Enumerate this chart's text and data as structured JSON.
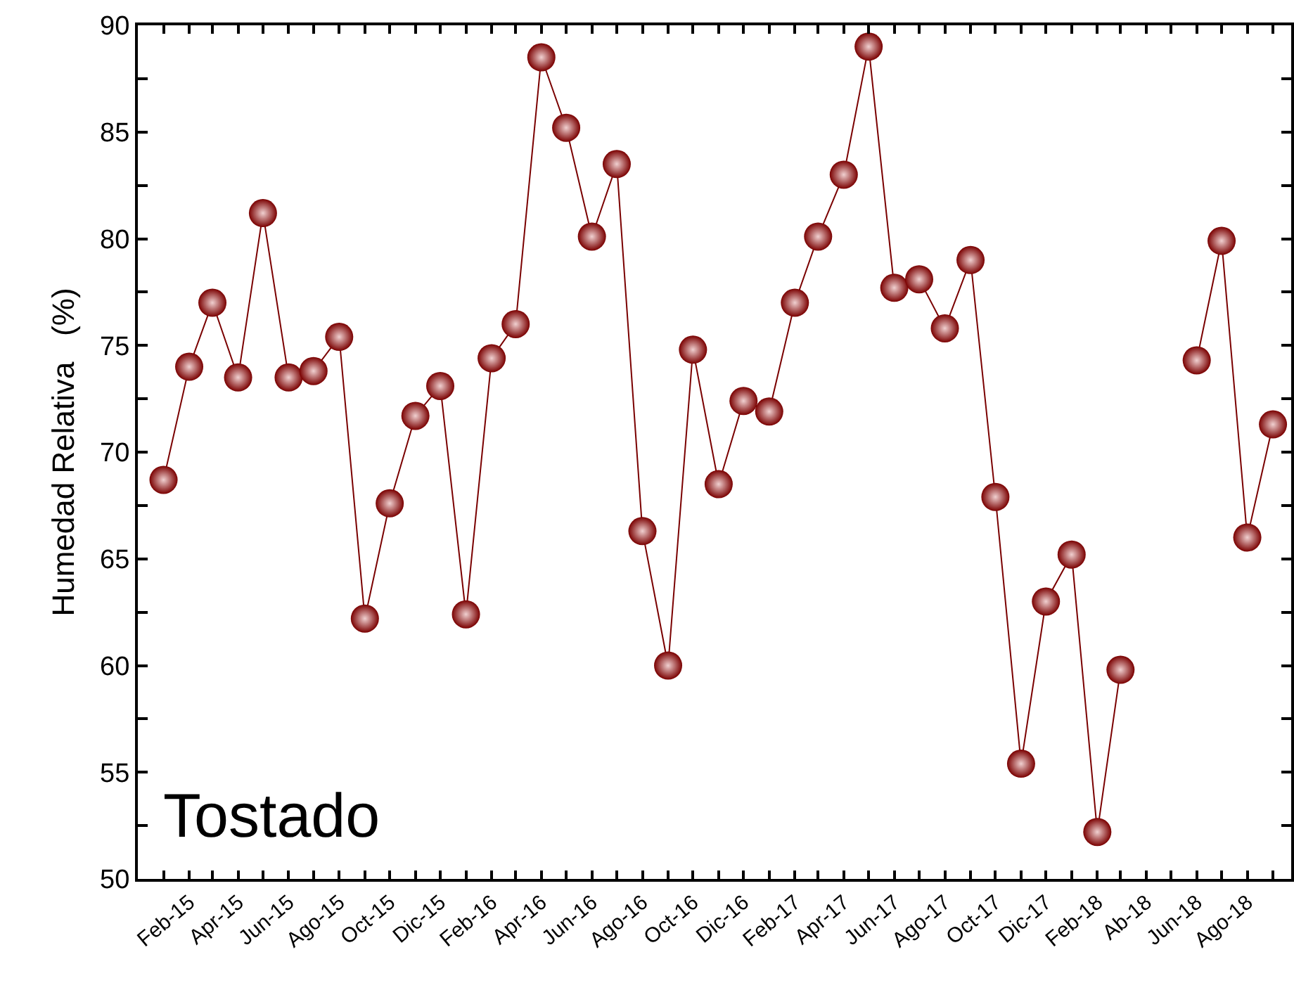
{
  "chart_data": {
    "type": "line",
    "ylabel": "Humedad Relativa   (%)",
    "annotations": [
      "Tostado"
    ],
    "x": [
      "2015-01",
      "2015-02",
      "2015-03",
      "2015-04",
      "2015-05",
      "2015-06",
      "2015-07",
      "2015-08",
      "2015-09",
      "2015-10",
      "2015-11",
      "2015-12",
      "2016-01",
      "2016-02",
      "2016-03",
      "2016-04",
      "2016-05",
      "2016-06",
      "2016-07",
      "2016-08",
      "2016-09",
      "2016-10",
      "2016-11",
      "2016-12",
      "2017-01",
      "2017-02",
      "2017-03",
      "2017-04",
      "2017-05",
      "2017-06",
      "2017-07",
      "2017-08",
      "2017-09",
      "2017-10",
      "2017-11",
      "2017-12",
      "2018-01",
      "2018-02",
      "2018-03",
      "2018-04",
      "2018-05",
      "2018-06",
      "2018-07",
      "2018-08",
      "2018-09"
    ],
    "series": [
      {
        "color": "#7a0000",
        "values": [
          68.7,
          74,
          77,
          73.5,
          81.2,
          73.5,
          73.8,
          75.4,
          62.2,
          67.6,
          71.7,
          73.1,
          62.4,
          74.4,
          76,
          88.5,
          85.2,
          80.1,
          83.5,
          66.3,
          60,
          74.8,
          68.5,
          72.4,
          71.9,
          77,
          80.1,
          83,
          89,
          77.7,
          78.1,
          75.8,
          79,
          67.9,
          55.4,
          63,
          65.2,
          52.2,
          59.8,
          null,
          null,
          74.3,
          79.9,
          66,
          71.3
        ]
      }
    ],
    "xlim": [
      "2014-12",
      "2018-09-23"
    ],
    "xticks": [
      {
        "value": "2015-01",
        "label": null
      },
      {
        "value": "2015-02",
        "label": "Feb-15"
      },
      {
        "value": "2015-03",
        "label": null
      },
      {
        "value": "2015-04",
        "label": "Apr-15"
      },
      {
        "value": "2015-05",
        "label": null
      },
      {
        "value": "2015-06",
        "label": "Jun-15"
      },
      {
        "value": "2015-07",
        "label": null
      },
      {
        "value": "2015-08",
        "label": "Ago-15"
      },
      {
        "value": "2015-09",
        "label": null
      },
      {
        "value": "2015-10",
        "label": "Oct-15"
      },
      {
        "value": "2015-11",
        "label": null
      },
      {
        "value": "2015-12",
        "label": "Dic-15"
      },
      {
        "value": "2016-01",
        "label": null
      },
      {
        "value": "2016-02",
        "label": "Feb-16"
      },
      {
        "value": "2016-03",
        "label": null
      },
      {
        "value": "2016-04",
        "label": "Apr-16"
      },
      {
        "value": "2016-05",
        "label": null
      },
      {
        "value": "2016-06",
        "label": "Jun-16"
      },
      {
        "value": "2016-07",
        "label": null
      },
      {
        "value": "2016-08",
        "label": "Ago-16"
      },
      {
        "value": "2016-09",
        "label": null
      },
      {
        "value": "2016-10",
        "label": "Oct-16"
      },
      {
        "value": "2016-11",
        "label": null
      },
      {
        "value": "2016-12",
        "label": "Dic-16"
      },
      {
        "value": "2017-01",
        "label": null
      },
      {
        "value": "2017-02",
        "label": "Feb-17"
      },
      {
        "value": "2017-03",
        "label": null
      },
      {
        "value": "2017-04",
        "label": "Apr-17"
      },
      {
        "value": "2017-05",
        "label": null
      },
      {
        "value": "2017-06",
        "label": "Jun-17"
      },
      {
        "value": "2017-07",
        "label": null
      },
      {
        "value": "2017-08",
        "label": "Ago-17"
      },
      {
        "value": "2017-09",
        "label": null
      },
      {
        "value": "2017-10",
        "label": "Oct-17"
      },
      {
        "value": "2017-11",
        "label": null
      },
      {
        "value": "2017-12",
        "label": "Dic-17"
      },
      {
        "value": "2018-01",
        "label": null
      },
      {
        "value": "2018-02",
        "label": "Feb-18"
      },
      {
        "value": "2018-03",
        "label": null
      },
      {
        "value": "2018-04",
        "label": "Ab-18"
      },
      {
        "value": "2018-05",
        "label": null
      },
      {
        "value": "2018-06",
        "label": "Jun-18"
      },
      {
        "value": "2018-07",
        "label": null
      },
      {
        "value": "2018-08",
        "label": "Ago-18"
      },
      {
        "value": "2018-09",
        "label": null
      }
    ],
    "ylim": [
      50,
      90
    ],
    "yticks": [
      50,
      {
        "value": 52.5,
        "label": null
      },
      55,
      {
        "value": 57.5,
        "label": null
      },
      60,
      {
        "value": 62.5,
        "label": null
      },
      65,
      {
        "value": 67.5,
        "label": null
      },
      70,
      {
        "value": 72.5,
        "label": null
      },
      75,
      {
        "value": 77.5,
        "label": null
      },
      80,
      {
        "value": 82.5,
        "label": null
      },
      85,
      {
        "value": 87.5,
        "label": null
      },
      90
    ],
    "marker": "circle",
    "line_style": "solid",
    "grid": false
  }
}
